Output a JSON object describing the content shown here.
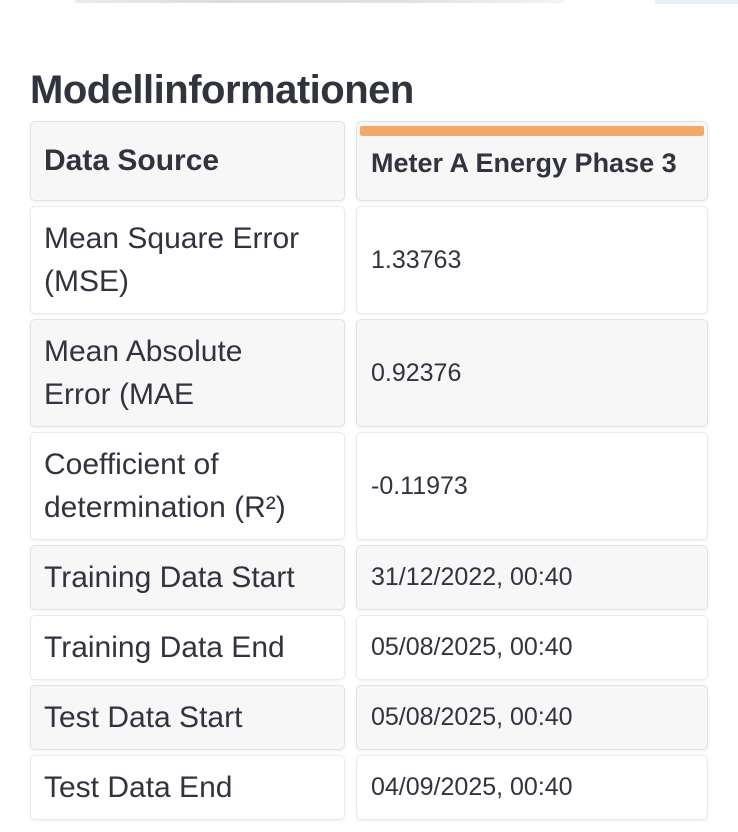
{
  "page": {
    "title": "Modellinformationen"
  },
  "colors": {
    "accent_orange": "#F2A96A",
    "text": "#31333F",
    "alt_row_bg": "#F7F7F8"
  },
  "table": {
    "header": {
      "label": "Data Source",
      "value": "Meter A Energy Phase 3"
    },
    "rows": [
      {
        "label": "Mean Square Error (MSE)",
        "value": "1.33763"
      },
      {
        "label": "Mean Absolute Error (MAE",
        "value": "0.92376"
      },
      {
        "label": "Coefficient of determination (R²)",
        "value": "-0.11973"
      },
      {
        "label": "Training Data Start",
        "value": "31/12/2022, 00:40"
      },
      {
        "label": "Training Data End",
        "value": "05/08/2025, 00:40"
      },
      {
        "label": "Test Data Start",
        "value": "05/08/2025, 00:40"
      },
      {
        "label": "Test Data End",
        "value": "04/09/2025, 00:40"
      }
    ]
  }
}
